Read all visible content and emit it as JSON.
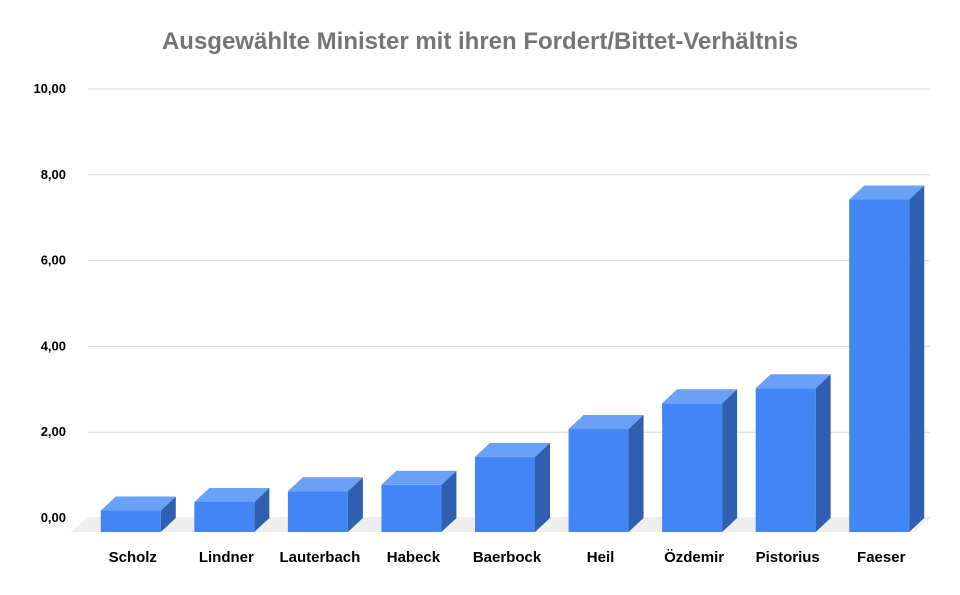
{
  "chart_data": {
    "type": "bar",
    "title": "Ausgewählte Minister mit ihren Fordert/Bittet-Verhältnis",
    "xlabel": "",
    "ylabel": "",
    "ylim": [
      0,
      10
    ],
    "yticks": [
      "0,00",
      "2,00",
      "4,00",
      "6,00",
      "8,00",
      "10,00"
    ],
    "ytick_values": [
      0,
      2,
      4,
      6,
      8,
      10
    ],
    "categories": [
      "Scholz",
      "Lindner",
      "Lauterbach",
      "Habeck",
      "Baerbock",
      "Heil",
      "Özdemir",
      "Pistorius",
      "Faeser"
    ],
    "values": [
      0.5,
      0.7,
      0.95,
      1.1,
      1.75,
      2.4,
      3.0,
      3.35,
      7.75
    ],
    "grid": true,
    "style": "3d-column"
  },
  "colors": {
    "bar_front": "#4285f4",
    "bar_top": "#6aa1f7",
    "bar_side": "#2f5fb0",
    "grid": "#d9d9d9",
    "floor": "#eeeeee",
    "title": "#757575",
    "axis_text": "#000000"
  }
}
